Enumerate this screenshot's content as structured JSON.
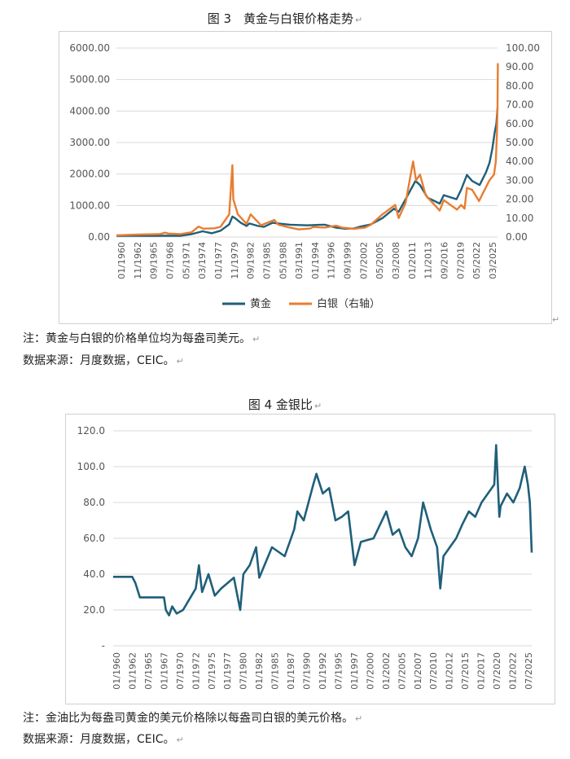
{
  "chart1": {
    "caption": "图 3　黄金与白银价格走势",
    "note": "注：黄金与白银的价格单位均为每盎司美元。",
    "source": "数据来源：月度数据，CEIC。",
    "y_left_ticks": [
      "0.00",
      "1000.00",
      "2000.00",
      "3000.00",
      "4000.00",
      "5000.00",
      "6000.00"
    ],
    "y_right_ticks": [
      "0.00",
      "10.00",
      "20.00",
      "30.00",
      "40.00",
      "50.00",
      "60.00",
      "70.00",
      "80.00",
      "90.00",
      "100.00"
    ],
    "x_ticks": [
      "01/1960",
      "11/1962",
      "09/1965",
      "07/1968",
      "05/1971",
      "03/1974",
      "01/1977",
      "11/1979",
      "09/1982",
      "07/1985",
      "05/1988",
      "03/1991",
      "01/1994",
      "11/1996",
      "09/1999",
      "07/2002",
      "05/2005",
      "03/2008",
      "01/2011",
      "11/2013",
      "09/2016",
      "07/2019",
      "05/2022",
      "03/2025"
    ],
    "legend": [
      "黄金",
      "白银（右轴）"
    ]
  },
  "chart2": {
    "caption": "图 4  金银比",
    "note": "注：金油比为每盎司黄金的美元价格除以每盎司白银的美元价格。",
    "source": "数据来源：月度数据，CEIC。",
    "y_ticks": [
      "-",
      "20.0",
      "40.0",
      "60.0",
      "80.0",
      "100.0",
      "120.0"
    ],
    "x_ticks": [
      "01/1960",
      "01/1962",
      "07/1965",
      "01/1967",
      "07/1970",
      "01/1972",
      "07/1975",
      "01/1977",
      "07/1980",
      "01/1982",
      "07/1985",
      "01/1987",
      "07/1990",
      "01/1992",
      "07/1995",
      "01/1997",
      "07/2000",
      "01/2002",
      "07/2005",
      "01/2007",
      "07/2010",
      "01/2012",
      "07/2015",
      "01/2017",
      "07/2020",
      "01/2022",
      "07/2025"
    ]
  },
  "chart_data": [
    {
      "type": "line",
      "title": "图 3　黄金与白银价格走势",
      "x_range": [
        1960,
        2025.9
      ],
      "ylim_left": [
        0,
        6000
      ],
      "ylim_right": [
        0,
        100
      ],
      "grid": "horizontal",
      "legend_position": "bottom",
      "series": [
        {
          "name": "黄金",
          "axis": "left",
          "color": "#1f5f7a",
          "points": [
            [
              1960,
              35
            ],
            [
              1968,
              38
            ],
            [
              1971,
              40
            ],
            [
              1973,
              90
            ],
            [
              1974.9,
              180
            ],
            [
              1976.5,
              120
            ],
            [
              1978,
              200
            ],
            [
              1979.5,
              400
            ],
            [
              1980.05,
              650
            ],
            [
              1980.5,
              600
            ],
            [
              1981.5,
              450
            ],
            [
              1982.5,
              350
            ],
            [
              1983,
              430
            ],
            [
              1984.5,
              350
            ],
            [
              1985.5,
              320
            ],
            [
              1987,
              450
            ],
            [
              1988,
              430
            ],
            [
              1990,
              390
            ],
            [
              1993,
              370
            ],
            [
              1995,
              385
            ],
            [
              1996,
              390
            ],
            [
              1998,
              295
            ],
            [
              1999.5,
              265
            ],
            [
              2001,
              270
            ],
            [
              2002,
              320
            ],
            [
              2004,
              400
            ],
            [
              2006,
              600
            ],
            [
              2008,
              900
            ],
            [
              2008.8,
              800
            ],
            [
              2010,
              1200
            ],
            [
              2011.7,
              1780
            ],
            [
              2012.5,
              1650
            ],
            [
              2013.8,
              1250
            ],
            [
              2015.9,
              1060
            ],
            [
              2016.6,
              1330
            ],
            [
              2018.8,
              1200
            ],
            [
              2019.6,
              1500
            ],
            [
              2020.6,
              1970
            ],
            [
              2021.5,
              1780
            ],
            [
              2022.8,
              1650
            ],
            [
              2023.9,
              2050
            ],
            [
              2024.5,
              2350
            ],
            [
              2025.0,
              2800
            ],
            [
              2025.4,
              3300
            ],
            [
              2025.7,
              3600
            ],
            [
              2025.9,
              4100
            ]
          ]
        },
        {
          "name": "白银（右轴）",
          "axis": "right",
          "color": "#e87d31",
          "points": [
            [
              1960,
              0.91
            ],
            [
              1964,
              1.29
            ],
            [
              1967.5,
              1.5
            ],
            [
              1968.4,
              2.3
            ],
            [
              1969,
              1.8
            ],
            [
              1971,
              1.5
            ],
            [
              1973,
              2.5
            ],
            [
              1974.2,
              5.5
            ],
            [
              1975,
              4.4
            ],
            [
              1977,
              4.6
            ],
            [
              1978,
              5.4
            ],
            [
              1979.5,
              12
            ],
            [
              1980.05,
              38
            ],
            [
              1980.2,
              20
            ],
            [
              1981,
              12
            ],
            [
              1982.5,
              7
            ],
            [
              1983.2,
              12
            ],
            [
              1985,
              6.2
            ],
            [
              1987.3,
              9
            ],
            [
              1988,
              6.5
            ],
            [
              1990,
              5
            ],
            [
              1991.5,
              4
            ],
            [
              1993.5,
              4.5
            ],
            [
              1994,
              5.3
            ],
            [
              1996,
              5
            ],
            [
              1998,
              6
            ],
            [
              1999,
              5
            ],
            [
              2001,
              4.3
            ],
            [
              2003,
              5
            ],
            [
              2004,
              6.5
            ],
            [
              2006,
              12
            ],
            [
              2008.2,
              17
            ],
            [
              2008.8,
              10
            ],
            [
              2010,
              18
            ],
            [
              2011.3,
              40
            ],
            [
              2011.8,
              30
            ],
            [
              2012.5,
              33
            ],
            [
              2013.5,
              22
            ],
            [
              2015.9,
              14
            ],
            [
              2016.6,
              19.5
            ],
            [
              2018.9,
              14.5
            ],
            [
              2019.6,
              17
            ],
            [
              2020.2,
              15
            ],
            [
              2020.6,
              26
            ],
            [
              2021.5,
              25
            ],
            [
              2022.7,
              19
            ],
            [
              2023.5,
              24
            ],
            [
              2024.5,
              30
            ],
            [
              2025.3,
              33
            ],
            [
              2025.6,
              40
            ],
            [
              2025.8,
              55
            ],
            [
              2025.9,
              69
            ],
            [
              2025.95,
              92
            ]
          ]
        }
      ]
    },
    {
      "type": "line",
      "title": "图 4  金银比",
      "x_range": [
        1960,
        2025.9
      ],
      "ylim": [
        0,
        120
      ],
      "grid": "horizontal",
      "series": [
        {
          "name": "",
          "color": "#1f5f7a",
          "points": [
            [
              1960,
              38.5
            ],
            [
              1963,
              38.5
            ],
            [
              1963.5,
              35
            ],
            [
              1964.2,
              27
            ],
            [
              1966,
              27
            ],
            [
              1968,
              27
            ],
            [
              1968.3,
              20
            ],
            [
              1968.8,
              17
            ],
            [
              1969.3,
              22
            ],
            [
              1970,
              18
            ],
            [
              1971,
              20
            ],
            [
              1972,
              26
            ],
            [
              1973,
              32
            ],
            [
              1973.5,
              45
            ],
            [
              1974,
              30
            ],
            [
              1975,
              40
            ],
            [
              1976,
              28
            ],
            [
              1977,
              32
            ],
            [
              1978,
              35
            ],
            [
              1979,
              38
            ],
            [
              1980,
              20
            ],
            [
              1980.5,
              40
            ],
            [
              1981.5,
              45
            ],
            [
              1982.5,
              55
            ],
            [
              1983,
              38
            ],
            [
              1985,
              55
            ],
            [
              1987,
              50
            ],
            [
              1988.5,
              65
            ],
            [
              1989,
              75
            ],
            [
              1990,
              70
            ],
            [
              1991.5,
              90
            ],
            [
              1992,
              96
            ],
            [
              1993,
              85
            ],
            [
              1994,
              88
            ],
            [
              1995,
              70
            ],
            [
              1996,
              72
            ],
            [
              1997,
              75
            ],
            [
              1998,
              45
            ],
            [
              1999,
              58
            ],
            [
              2001,
              60
            ],
            [
              2003,
              75
            ],
            [
              2004,
              62
            ],
            [
              2005,
              65
            ],
            [
              2006,
              55
            ],
            [
              2007,
              50
            ],
            [
              2008,
              60
            ],
            [
              2008.8,
              80
            ],
            [
              2010,
              65
            ],
            [
              2011,
              55
            ],
            [
              2011.5,
              32
            ],
            [
              2012,
              50
            ],
            [
              2013,
              55
            ],
            [
              2014,
              60
            ],
            [
              2015,
              68
            ],
            [
              2016,
              75
            ],
            [
              2017,
              72
            ],
            [
              2018,
              80
            ],
            [
              2019,
              85
            ],
            [
              2020,
              90
            ],
            [
              2020.3,
              112
            ],
            [
              2020.8,
              72
            ],
            [
              2021,
              78
            ],
            [
              2022,
              85
            ],
            [
              2023,
              80
            ],
            [
              2024,
              88
            ],
            [
              2024.8,
              100
            ],
            [
              2025.3,
              90
            ],
            [
              2025.6,
              80
            ],
            [
              2025.9,
              52
            ]
          ]
        }
      ]
    }
  ]
}
